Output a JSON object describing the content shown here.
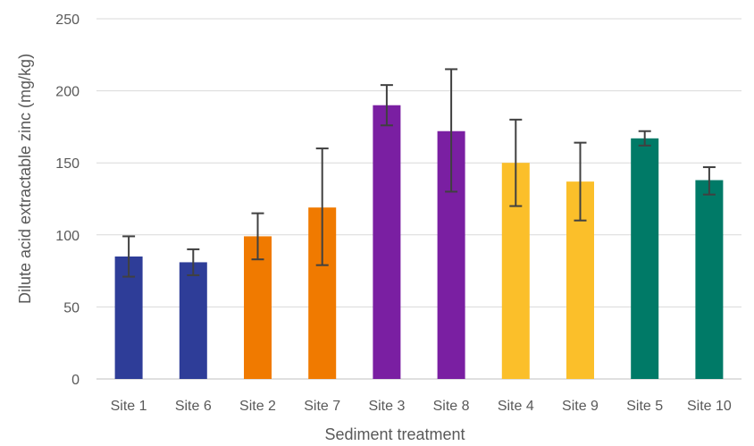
{
  "chart_data": {
    "type": "bar",
    "title": "",
    "xlabel": "Sediment treatment",
    "ylabel": "Dilute acid extractable zinc (mg/kg)",
    "ylim": [
      0,
      250
    ],
    "yticks": [
      0,
      50,
      100,
      150,
      200,
      250
    ],
    "grid": true,
    "legend": "none",
    "categories": [
      "Site 1",
      "Site 6",
      "Site 2",
      "Site 7",
      "Site 3",
      "Site 8",
      "Site 4",
      "Site 9",
      "Site 5",
      "Site 10"
    ],
    "values": [
      85,
      81,
      99,
      119,
      190,
      172,
      150,
      137,
      167,
      138
    ],
    "error_low": [
      71,
      72,
      83,
      79,
      176,
      130,
      120,
      110,
      162,
      128
    ],
    "error_high": [
      99,
      90,
      115,
      160,
      204,
      215,
      180,
      164,
      172,
      147
    ],
    "colors": [
      "#2E3D98",
      "#2E3D98",
      "#F07A00",
      "#F07A00",
      "#7A1FA2",
      "#7A1FA2",
      "#FBBF2A",
      "#FBBF2A",
      "#007A67",
      "#007A67"
    ]
  }
}
